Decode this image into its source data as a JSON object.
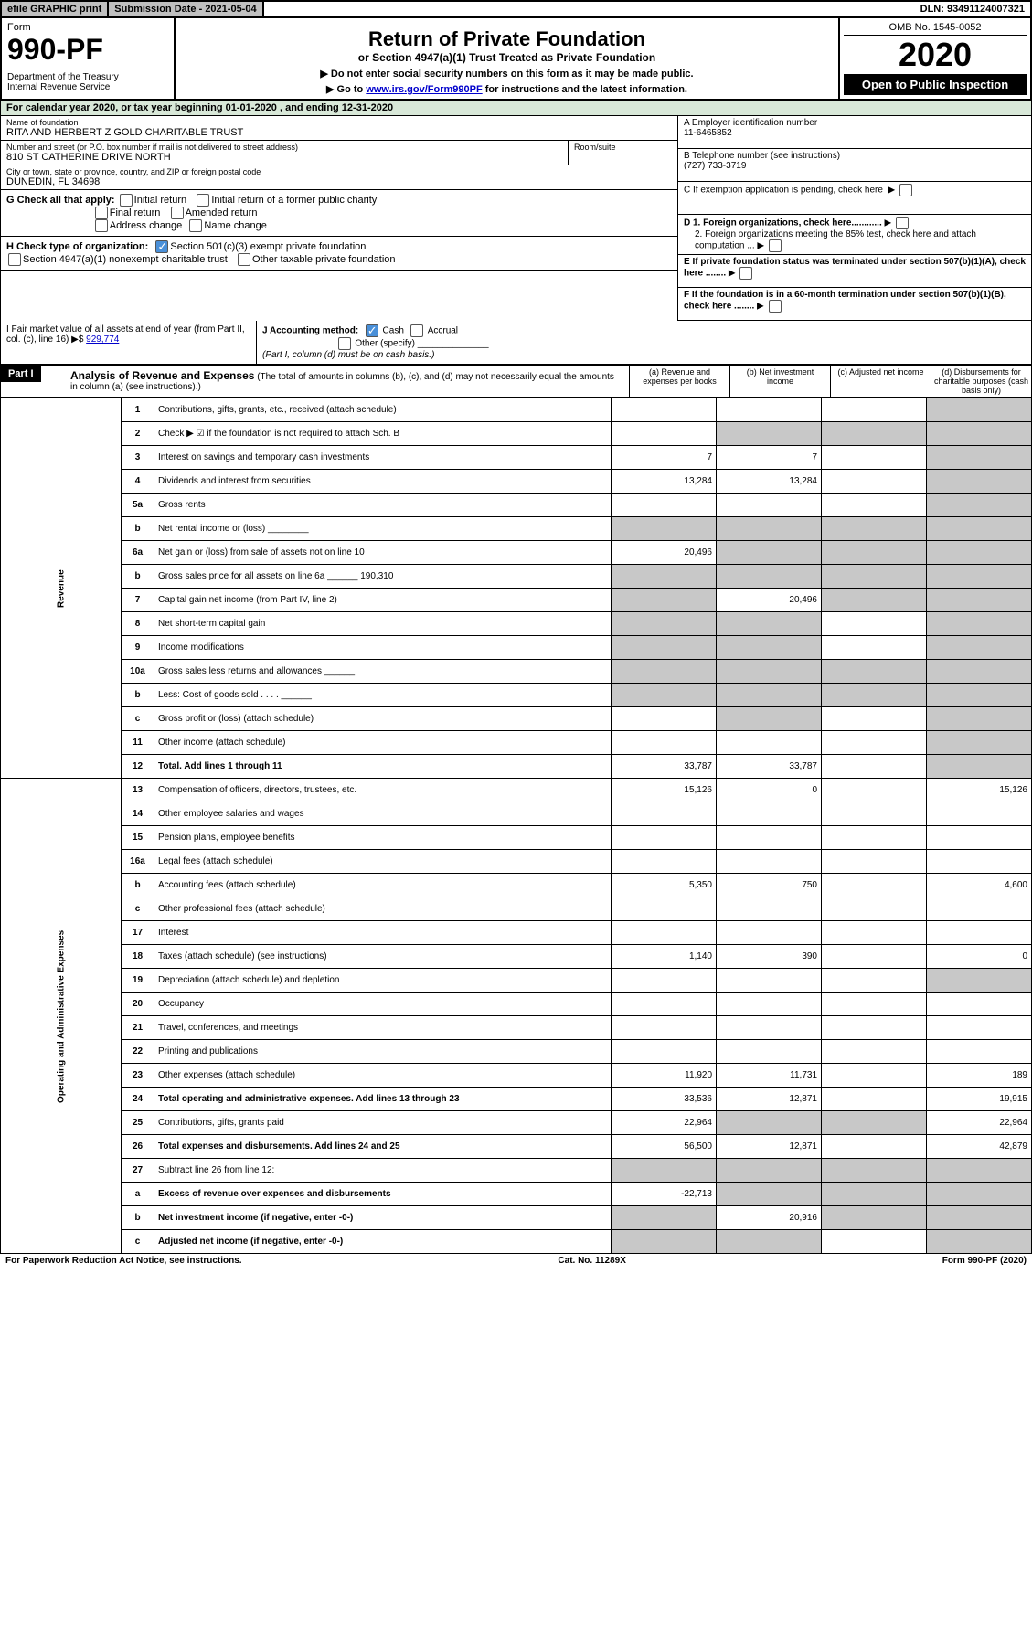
{
  "topbar": {
    "efile": "efile GRAPHIC print",
    "submission": "Submission Date - 2021-05-04",
    "dln": "DLN: 93491124007321"
  },
  "header": {
    "form_label": "Form",
    "form_number": "990-PF",
    "dept": "Department of the Treasury\nInternal Revenue Service",
    "title": "Return of Private Foundation",
    "subtitle": "or Section 4947(a)(1) Trust Treated as Private Foundation",
    "instr1": "▶ Do not enter social security numbers on this form as it may be made public.",
    "instr2": "▶ Go to ",
    "instr2_link": "www.irs.gov/Form990PF",
    "instr2_tail": " for instructions and the latest information.",
    "omb": "OMB No. 1545-0052",
    "year": "2020",
    "open": "Open to Public Inspection"
  },
  "yearrow": "For calendar year 2020, or tax year beginning 01-01-2020            , and ending 12-31-2020",
  "info": {
    "name_label": "Name of foundation",
    "name": "RITA AND HERBERT Z GOLD CHARITABLE TRUST",
    "addr_label": "Number and street (or P.O. box number if mail is not delivered to street address)",
    "addr": "810 ST CATHERINE DRIVE NORTH",
    "room_label": "Room/suite",
    "city_label": "City or town, state or province, country, and ZIP or foreign postal code",
    "city": "DUNEDIN, FL  34698",
    "a_label": "A Employer identification number",
    "a_val": "11-6465852",
    "b_label": "B Telephone number (see instructions)",
    "b_val": "(727) 733-3719",
    "c_label": "C If exemption application is pending, check here",
    "d1_label": "D 1. Foreign organizations, check here............",
    "d2_label": "2. Foreign organizations meeting the 85% test, check here and attach computation ...",
    "e_label": "E  If private foundation status was terminated under section 507(b)(1)(A), check here ........",
    "f_label": "F  If the foundation is in a 60-month termination under section 507(b)(1)(B), check here ........"
  },
  "g": {
    "label": "G Check all that apply:",
    "opts": [
      "Initial return",
      "Initial return of a former public charity",
      "Final return",
      "Amended return",
      "Address change",
      "Name change"
    ]
  },
  "h": {
    "label": "H Check type of organization:",
    "opt1": "Section 501(c)(3) exempt private foundation",
    "opt2": "Section 4947(a)(1) nonexempt charitable trust",
    "opt3": "Other taxable private foundation"
  },
  "i": {
    "label": "I Fair market value of all assets at end of year (from Part II, col. (c), line 16) ▶$",
    "val": "929,774"
  },
  "j": {
    "label": "J Accounting method:",
    "cash": "Cash",
    "accrual": "Accrual",
    "other": "Other (specify)",
    "note": "(Part I, column (d) must be on cash basis.)"
  },
  "part1": {
    "tag": "Part I",
    "title": "Analysis of Revenue and Expenses",
    "note": "(The total of amounts in columns (b), (c), and (d) may not necessarily equal the amounts in column (a) (see instructions).)",
    "cols": {
      "a": "(a) Revenue and expenses per books",
      "b": "(b) Net investment income",
      "c": "(c) Adjusted net income",
      "d": "(d) Disbursements for charitable purposes (cash basis only)"
    }
  },
  "sections": {
    "revenue": "Revenue",
    "expenses": "Operating and Administrative Expenses"
  },
  "rows": [
    {
      "n": "1",
      "d": "Contributions, gifts, grants, etc., received (attach schedule)",
      "a": "",
      "b": "",
      "c": "",
      "dd": "",
      "shade_d": true
    },
    {
      "n": "2",
      "d": "Check ▶ ☑ if the foundation is not required to attach Sch. B",
      "a": "",
      "b": "",
      "c": "",
      "dd": "",
      "shade_bcd": true
    },
    {
      "n": "3",
      "d": "Interest on savings and temporary cash investments",
      "a": "7",
      "b": "7",
      "c": "",
      "dd": "",
      "shade_d": true
    },
    {
      "n": "4",
      "d": "Dividends and interest from securities",
      "a": "13,284",
      "b": "13,284",
      "c": "",
      "dd": "",
      "shade_d": true
    },
    {
      "n": "5a",
      "d": "Gross rents",
      "a": "",
      "b": "",
      "c": "",
      "dd": "",
      "shade_d": true
    },
    {
      "n": "b",
      "d": "Net rental income or (loss) ________",
      "a": "",
      "b": "",
      "c": "",
      "dd": "",
      "shade_all": true
    },
    {
      "n": "6a",
      "d": "Net gain or (loss) from sale of assets not on line 10",
      "a": "20,496",
      "b": "",
      "c": "",
      "dd": "",
      "shade_bcd": true
    },
    {
      "n": "b",
      "d": "Gross sales price for all assets on line 6a ______ 190,310",
      "a": "",
      "b": "",
      "c": "",
      "dd": "",
      "shade_all": true
    },
    {
      "n": "7",
      "d": "Capital gain net income (from Part IV, line 2)",
      "a": "",
      "b": "20,496",
      "c": "",
      "dd": "",
      "shade_a": true,
      "shade_cd": true
    },
    {
      "n": "8",
      "d": "Net short-term capital gain",
      "a": "",
      "b": "",
      "c": "",
      "dd": "",
      "shade_ab": true,
      "shade_d": true
    },
    {
      "n": "9",
      "d": "Income modifications",
      "a": "",
      "b": "",
      "c": "",
      "dd": "",
      "shade_ab": true,
      "shade_d": true
    },
    {
      "n": "10a",
      "d": "Gross sales less returns and allowances ______",
      "a": "",
      "b": "",
      "c": "",
      "dd": "",
      "shade_all": true
    },
    {
      "n": "b",
      "d": "Less: Cost of goods sold    . . . .  ______",
      "a": "",
      "b": "",
      "c": "",
      "dd": "",
      "shade_all": true
    },
    {
      "n": "c",
      "d": "Gross profit or (loss) (attach schedule)",
      "a": "",
      "b": "",
      "c": "",
      "dd": "",
      "shade_b": true,
      "shade_d": true
    },
    {
      "n": "11",
      "d": "Other income (attach schedule)",
      "a": "",
      "b": "",
      "c": "",
      "dd": "",
      "shade_d": true
    },
    {
      "n": "12",
      "d": "Total. Add lines 1 through 11",
      "a": "33,787",
      "b": "33,787",
      "c": "",
      "dd": "",
      "shade_d": true,
      "bold": true
    },
    {
      "n": "13",
      "d": "Compensation of officers, directors, trustees, etc.",
      "a": "15,126",
      "b": "0",
      "c": "",
      "dd": "15,126"
    },
    {
      "n": "14",
      "d": "Other employee salaries and wages",
      "a": "",
      "b": "",
      "c": "",
      "dd": ""
    },
    {
      "n": "15",
      "d": "Pension plans, employee benefits",
      "a": "",
      "b": "",
      "c": "",
      "dd": ""
    },
    {
      "n": "16a",
      "d": "Legal fees (attach schedule)",
      "a": "",
      "b": "",
      "c": "",
      "dd": ""
    },
    {
      "n": "b",
      "d": "Accounting fees (attach schedule)",
      "a": "5,350",
      "b": "750",
      "c": "",
      "dd": "4,600"
    },
    {
      "n": "c",
      "d": "Other professional fees (attach schedule)",
      "a": "",
      "b": "",
      "c": "",
      "dd": ""
    },
    {
      "n": "17",
      "d": "Interest",
      "a": "",
      "b": "",
      "c": "",
      "dd": ""
    },
    {
      "n": "18",
      "d": "Taxes (attach schedule) (see instructions)",
      "a": "1,140",
      "b": "390",
      "c": "",
      "dd": "0"
    },
    {
      "n": "19",
      "d": "Depreciation (attach schedule) and depletion",
      "a": "",
      "b": "",
      "c": "",
      "dd": "",
      "shade_d": true
    },
    {
      "n": "20",
      "d": "Occupancy",
      "a": "",
      "b": "",
      "c": "",
      "dd": ""
    },
    {
      "n": "21",
      "d": "Travel, conferences, and meetings",
      "a": "",
      "b": "",
      "c": "",
      "dd": ""
    },
    {
      "n": "22",
      "d": "Printing and publications",
      "a": "",
      "b": "",
      "c": "",
      "dd": ""
    },
    {
      "n": "23",
      "d": "Other expenses (attach schedule)",
      "a": "11,920",
      "b": "11,731",
      "c": "",
      "dd": "189"
    },
    {
      "n": "24",
      "d": "Total operating and administrative expenses. Add lines 13 through 23",
      "a": "33,536",
      "b": "12,871",
      "c": "",
      "dd": "19,915",
      "bold": true
    },
    {
      "n": "25",
      "d": "Contributions, gifts, grants paid",
      "a": "22,964",
      "b": "",
      "c": "",
      "dd": "22,964",
      "shade_bc": true
    },
    {
      "n": "26",
      "d": "Total expenses and disbursements. Add lines 24 and 25",
      "a": "56,500",
      "b": "12,871",
      "c": "",
      "dd": "42,879",
      "bold": true
    },
    {
      "n": "27",
      "d": "Subtract line 26 from line 12:",
      "a": "",
      "b": "",
      "c": "",
      "dd": "",
      "shade_all": true
    },
    {
      "n": "a",
      "d": "Excess of revenue over expenses and disbursements",
      "a": "-22,713",
      "b": "",
      "c": "",
      "dd": "",
      "shade_bcd": true,
      "bold": true
    },
    {
      "n": "b",
      "d": "Net investment income (if negative, enter -0-)",
      "a": "",
      "b": "20,916",
      "c": "",
      "dd": "",
      "shade_a": true,
      "shade_cd": true,
      "bold": true
    },
    {
      "n": "c",
      "d": "Adjusted net income (if negative, enter -0-)",
      "a": "",
      "b": "",
      "c": "",
      "dd": "",
      "shade_ab": true,
      "shade_d": true,
      "bold": true
    }
  ],
  "footer": {
    "left": "For Paperwork Reduction Act Notice, see instructions.",
    "mid": "Cat. No. 11289X",
    "right": "Form 990-PF (2020)"
  },
  "colors": {
    "topbar_btn": "#c0c0c0",
    "yearrow_bg": "#d8e8d8",
    "shade": "#c8c8c8",
    "link": "#0000cc",
    "check": "#4a90d9"
  }
}
